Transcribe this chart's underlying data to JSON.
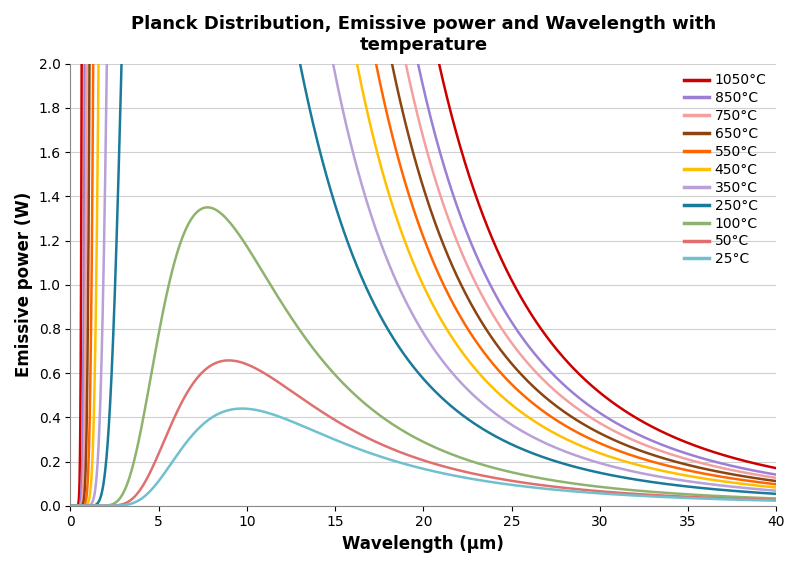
{
  "title": "Planck Distribution, Emissive power and Wavelength with\ntemperature",
  "xlabel": "Wavelength (μm)",
  "ylabel": "Emissive power (W)",
  "xlim": [
    0,
    40
  ],
  "ylim": [
    0,
    2
  ],
  "temperatures_C": [
    1050,
    850,
    750,
    650,
    550,
    450,
    350,
    250,
    100,
    50,
    25
  ],
  "colors": [
    "#cc0000",
    "#9b7fd4",
    "#f4a0a0",
    "#8b4513",
    "#ff6600",
    "#ffc000",
    "#b8a0d8",
    "#1a7a9a",
    "#8db36e",
    "#e07070",
    "#70c0d0"
  ],
  "legend_labels": [
    "1050°C",
    "850°C",
    "750°C",
    "650°C",
    "550°C",
    "450°C",
    "350°C",
    "250°C",
    "100°C",
    "50°C",
    "25°C"
  ],
  "linewidth": 1.8,
  "title_fontsize": 13,
  "label_fontsize": 12,
  "tick_fontsize": 10,
  "legend_fontsize": 10,
  "background_color": "#ffffff",
  "grid_color": "#d0d0d0"
}
